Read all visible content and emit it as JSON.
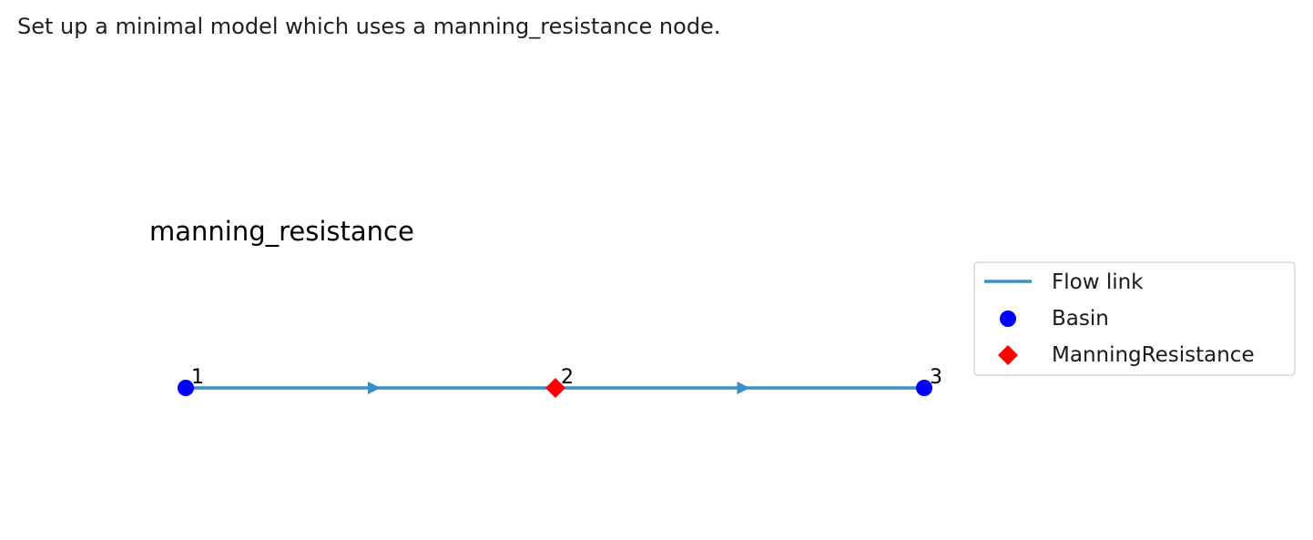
{
  "description": "Set up a minimal model which uses a manning_resistance node.",
  "figure": {
    "title": "manning_resistance",
    "link_color": "#3a8fc6",
    "nodes": [
      {
        "id": "1",
        "type": "Basin",
        "shape": "circle",
        "color": "#0000ff"
      },
      {
        "id": "2",
        "type": "ManningResistance",
        "shape": "diamond",
        "color": "#ff0000"
      },
      {
        "id": "3",
        "type": "Basin",
        "shape": "circle",
        "color": "#0000ff"
      }
    ],
    "links": [
      {
        "from": "1",
        "to": "2"
      },
      {
        "from": "2",
        "to": "3"
      }
    ],
    "legend": [
      {
        "label": "Flow link",
        "marker": "line",
        "color": "#3a8fc6"
      },
      {
        "label": "Basin",
        "marker": "circle",
        "color": "#0000ff"
      },
      {
        "label": "ManningResistance",
        "marker": "diamond",
        "color": "#ff0000"
      }
    ]
  }
}
